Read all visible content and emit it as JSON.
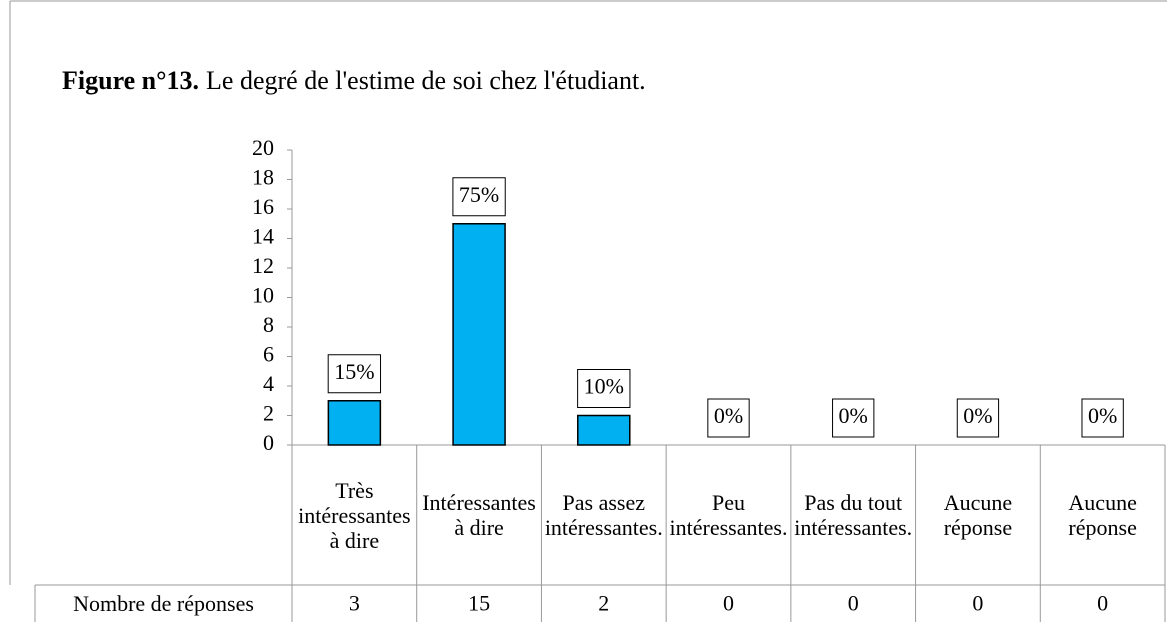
{
  "chart_data": {
    "type": "bar",
    "title_label": "Figure n°13.",
    "title": "Le degré de l'estime de soi chez l'étudiant.",
    "categories": [
      "Très intéressantes à dire",
      "Intéressantes à dire",
      "Pas assez intéressantes.",
      "Peu intéressantes.",
      "Pas du tout intéressantes.",
      "Aucune réponse",
      "Aucune réponse"
    ],
    "values": [
      3,
      15,
      2,
      0,
      0,
      0,
      0
    ],
    "color": "#00b0f0",
    "data_labels": {
      "values": [
        15,
        75,
        10,
        0,
        0,
        0,
        0
      ],
      "value_labels": [
        "15%",
        "75%",
        "10%",
        "0%",
        "0%",
        "0%",
        "0%"
      ]
    },
    "table_row_label": "Nombre de réponses",
    "ylim": [
      0,
      20
    ],
    "yticks": [
      0,
      2,
      4,
      6,
      8,
      10,
      12,
      14,
      16,
      18,
      20
    ],
    "grid": false
  }
}
